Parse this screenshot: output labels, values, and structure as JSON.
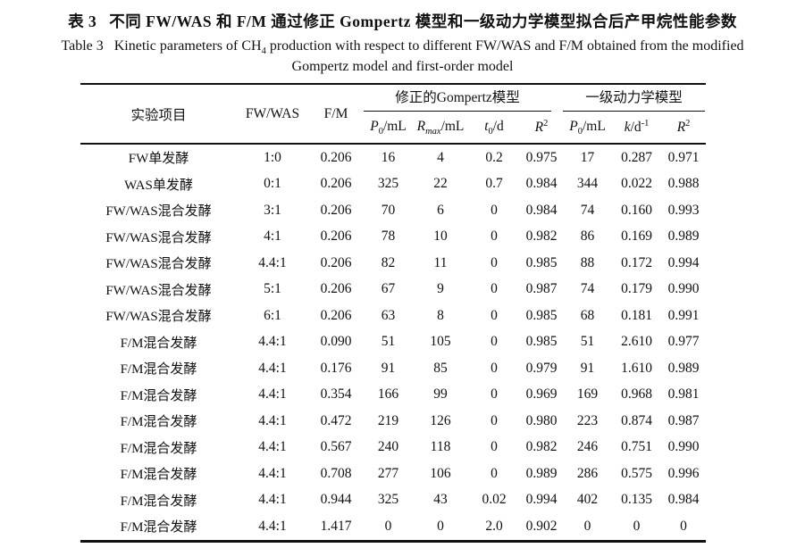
{
  "page": {
    "title_cn_label": "表 3",
    "title_cn_text": "不同 FW/WAS 和 F/M 通过修正 Gompertz 模型和一级动力学模型拟合后产甲烷性能参数",
    "title_en_label": "Table 3",
    "title_en_prefix": "Kinetic parameters of CH",
    "title_en_sub": "4",
    "title_en_suffix": " production with respect to different FW/WAS and F/M obtained from the modified",
    "title_en_line2": "Gompertz model and first-order model"
  },
  "table": {
    "columns": {
      "experiment": "实验项目",
      "fw_was": "FW/WAS",
      "f_m": "F/M",
      "group_gompertz": "修正的Gompertz模型",
      "group_first_order": "一级动力学模型",
      "p0": {
        "base": "P",
        "sub": "0",
        "unit": "/mL"
      },
      "rmax": {
        "base": "R",
        "sub": "max",
        "unit": "/mL"
      },
      "t0": {
        "base": "t",
        "sub": "0",
        "unit": "/d"
      },
      "r2": {
        "base": "R",
        "sup": "2"
      },
      "k": {
        "base": "k",
        "unit": "/d",
        "sup": "-1"
      }
    },
    "rows": [
      {
        "name": "FW单发酵",
        "ratio": "1:0",
        "fm": "0.206",
        "g_p0": "16",
        "g_rmax": "4",
        "g_t0": "0.2",
        "g_r2": "0.975",
        "f_p0": "17",
        "f_k": "0.287",
        "f_r2": "0.971"
      },
      {
        "name": "WAS单发酵",
        "ratio": "0:1",
        "fm": "0.206",
        "g_p0": "325",
        "g_rmax": "22",
        "g_t0": "0.7",
        "g_r2": "0.984",
        "f_p0": "344",
        "f_k": "0.022",
        "f_r2": "0.988"
      },
      {
        "name": "FW/WAS混合发酵",
        "ratio": "3:1",
        "fm": "0.206",
        "g_p0": "70",
        "g_rmax": "6",
        "g_t0": "0",
        "g_r2": "0.984",
        "f_p0": "74",
        "f_k": "0.160",
        "f_r2": "0.993"
      },
      {
        "name": "FW/WAS混合发酵",
        "ratio": "4:1",
        "fm": "0.206",
        "g_p0": "78",
        "g_rmax": "10",
        "g_t0": "0",
        "g_r2": "0.982",
        "f_p0": "86",
        "f_k": "0.169",
        "f_r2": "0.989"
      },
      {
        "name": "FW/WAS混合发酵",
        "ratio": "4.4:1",
        "fm": "0.206",
        "g_p0": "82",
        "g_rmax": "11",
        "g_t0": "0",
        "g_r2": "0.985",
        "f_p0": "88",
        "f_k": "0.172",
        "f_r2": "0.994"
      },
      {
        "name": "FW/WAS混合发酵",
        "ratio": "5:1",
        "fm": "0.206",
        "g_p0": "67",
        "g_rmax": "9",
        "g_t0": "0",
        "g_r2": "0.987",
        "f_p0": "74",
        "f_k": "0.179",
        "f_r2": "0.990"
      },
      {
        "name": "FW/WAS混合发酵",
        "ratio": "6:1",
        "fm": "0.206",
        "g_p0": "63",
        "g_rmax": "8",
        "g_t0": "0",
        "g_r2": "0.985",
        "f_p0": "68",
        "f_k": "0.181",
        "f_r2": "0.991"
      },
      {
        "name": "F/M混合发酵",
        "ratio": "4.4:1",
        "fm": "0.090",
        "g_p0": "51",
        "g_rmax": "105",
        "g_t0": "0",
        "g_r2": "0.985",
        "f_p0": "51",
        "f_k": "2.610",
        "f_r2": "0.977"
      },
      {
        "name": "F/M混合发酵",
        "ratio": "4.4:1",
        "fm": "0.176",
        "g_p0": "91",
        "g_rmax": "85",
        "g_t0": "0",
        "g_r2": "0.979",
        "f_p0": "91",
        "f_k": "1.610",
        "f_r2": "0.989"
      },
      {
        "name": "F/M混合发酵",
        "ratio": "4.4:1",
        "fm": "0.354",
        "g_p0": "166",
        "g_rmax": "99",
        "g_t0": "0",
        "g_r2": "0.969",
        "f_p0": "169",
        "f_k": "0.968",
        "f_r2": "0.981"
      },
      {
        "name": "F/M混合发酵",
        "ratio": "4.4:1",
        "fm": "0.472",
        "g_p0": "219",
        "g_rmax": "126",
        "g_t0": "0",
        "g_r2": "0.980",
        "f_p0": "223",
        "f_k": "0.874",
        "f_r2": "0.987"
      },
      {
        "name": "F/M混合发酵",
        "ratio": "4.4:1",
        "fm": "0.567",
        "g_p0": "240",
        "g_rmax": "118",
        "g_t0": "0",
        "g_r2": "0.982",
        "f_p0": "246",
        "f_k": "0.751",
        "f_r2": "0.990"
      },
      {
        "name": "F/M混合发酵",
        "ratio": "4.4:1",
        "fm": "0.708",
        "g_p0": "277",
        "g_rmax": "106",
        "g_t0": "0",
        "g_r2": "0.989",
        "f_p0": "286",
        "f_k": "0.575",
        "f_r2": "0.996"
      },
      {
        "name": "F/M混合发酵",
        "ratio": "4.4:1",
        "fm": "0.944",
        "g_p0": "325",
        "g_rmax": "43",
        "g_t0": "0.02",
        "g_r2": "0.994",
        "f_p0": "402",
        "f_k": "0.135",
        "f_r2": "0.984"
      },
      {
        "name": "F/M混合发酵",
        "ratio": "4.4:1",
        "fm": "1.417",
        "g_p0": "0",
        "g_rmax": "0",
        "g_t0": "2.0",
        "g_r2": "0.902",
        "f_p0": "0",
        "f_k": "0",
        "f_r2": "0"
      }
    ]
  }
}
